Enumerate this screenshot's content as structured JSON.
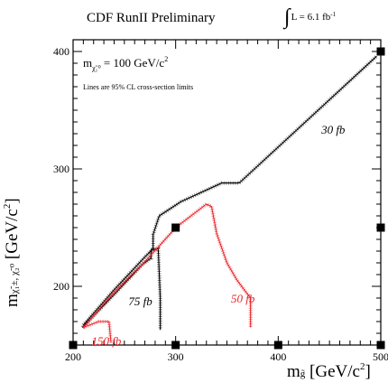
{
  "header": {
    "title": "CDF RunII Preliminary",
    "lumi_prefix": "L = 6.1 fb",
    "lumi_exp": "-1"
  },
  "axes": {
    "x_label_main": "m",
    "x_label_sub": "g̃",
    "x_label_unit": " [GeV/c",
    "x_label_exp": "2",
    "x_label_close": "]",
    "y_label_main": "m",
    "y_label_sub": "χ̃₁±, χ̃₂⁰",
    "y_label_unit": " [GeV/c",
    "y_label_exp": "2",
    "y_label_close": "]"
  },
  "annotations": {
    "mass_label": "m",
    "mass_sub": "χ̃₁⁰",
    "mass_value": " = 100 GeV/c",
    "mass_exp": "2",
    "note": "Lines are 95% CL cross-section limits"
  },
  "colors": {
    "black_contour": "#000000",
    "red_contour": "#e8252a",
    "marker": "#000000"
  },
  "chart_data": {
    "type": "line",
    "xlabel": "m_g̃ [GeV/c^2]",
    "ylabel": "m_χ̃1±,χ̃2⁰ [GeV/c^2]",
    "xlim": [
      200,
      500
    ],
    "ylim": [
      150,
      410
    ],
    "x_ticks": [
      200,
      300,
      400,
      500
    ],
    "y_ticks": [
      200,
      300,
      400
    ],
    "series": [
      {
        "name": "30 fb",
        "color": "#000000",
        "x": [
          210,
          240,
          270,
          278,
          278,
          284,
          305,
          345,
          362,
          496
        ],
        "y": [
          167,
          197,
          225,
          232,
          244,
          260,
          272,
          288,
          288,
          396
        ]
      },
      {
        "name": "75 fb",
        "color": "#000000",
        "x": [
          209,
          240,
          268,
          276,
          276,
          283,
          285,
          285
        ],
        "y": [
          165,
          193,
          219,
          224,
          231,
          232,
          190,
          163
        ]
      },
      {
        "name": "50 fb",
        "color": "#e8252a",
        "x": [
          210,
          240,
          270,
          294,
          300,
          330,
          335,
          340,
          350,
          360,
          373,
          373
        ],
        "y": [
          165,
          195,
          221,
          244,
          250,
          270,
          268,
          245,
          220,
          205,
          190,
          165
        ]
      },
      {
        "name": "150 fb",
        "color": "#e8252a",
        "x": [
          210,
          225,
          235,
          237
        ],
        "y": [
          165,
          170,
          170,
          152
        ]
      }
    ],
    "contour_labels": [
      {
        "text": "30 fb",
        "x": 442,
        "y": 330,
        "color": "#000000"
      },
      {
        "text": "75 fb",
        "x": 254,
        "y": 184,
        "color": "#000000"
      },
      {
        "text": "50 fb",
        "x": 354,
        "y": 186,
        "color": "#e8252a"
      },
      {
        "text": "150 fb",
        "x": 218,
        "y": 150,
        "color": "#e8252a"
      }
    ],
    "markers": [
      {
        "x": 200,
        "y": 150
      },
      {
        "x": 300,
        "y": 150
      },
      {
        "x": 400,
        "y": 150
      },
      {
        "x": 500,
        "y": 150
      },
      {
        "x": 300,
        "y": 250
      },
      {
        "x": 500,
        "y": 250
      },
      {
        "x": 500,
        "y": 400
      }
    ]
  }
}
